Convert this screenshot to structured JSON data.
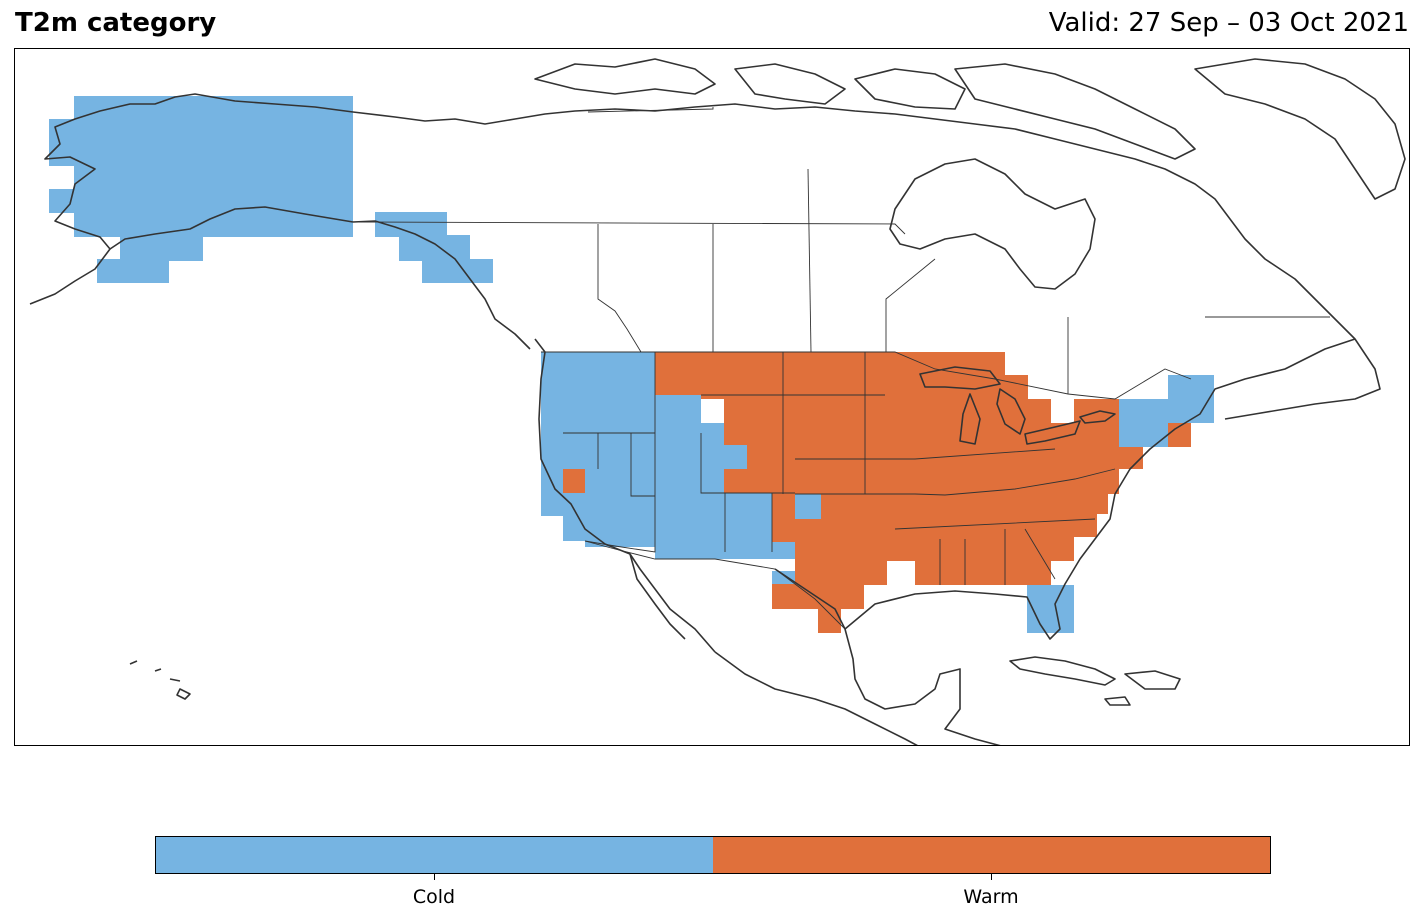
{
  "header": {
    "title": "T2m category",
    "valid": "Valid: 27 Sep – 03 Oct 2021"
  },
  "legend": {
    "categories": [
      {
        "label": "Cold",
        "color": "#76b4e2"
      },
      {
        "label": "Warm",
        "color": "#e0703b"
      }
    ]
  },
  "colors": {
    "cold": "#76b4e2",
    "warm": "#e0703b",
    "coastline": "#333333",
    "frame": "#000000"
  },
  "regions": [
    {
      "category": "Cold",
      "area": "Alaska"
    },
    {
      "category": "Cold",
      "area": "Alaska panhandle"
    },
    {
      "category": "Cold",
      "area": "Pacific Northwest"
    },
    {
      "category": "Cold",
      "area": "California and Great Basin"
    },
    {
      "category": "Cold",
      "area": "Southwest"
    },
    {
      "category": "Cold",
      "area": "New England"
    },
    {
      "category": "Cold",
      "area": "Florida"
    },
    {
      "category": "Warm",
      "area": "Northern and Central Plains"
    },
    {
      "category": "Warm",
      "area": "Midwest"
    },
    {
      "category": "Warm",
      "area": "Texas and South"
    },
    {
      "category": "Warm",
      "area": "Southeast"
    },
    {
      "category": "Warm",
      "area": "Mid-Atlantic"
    }
  ]
}
